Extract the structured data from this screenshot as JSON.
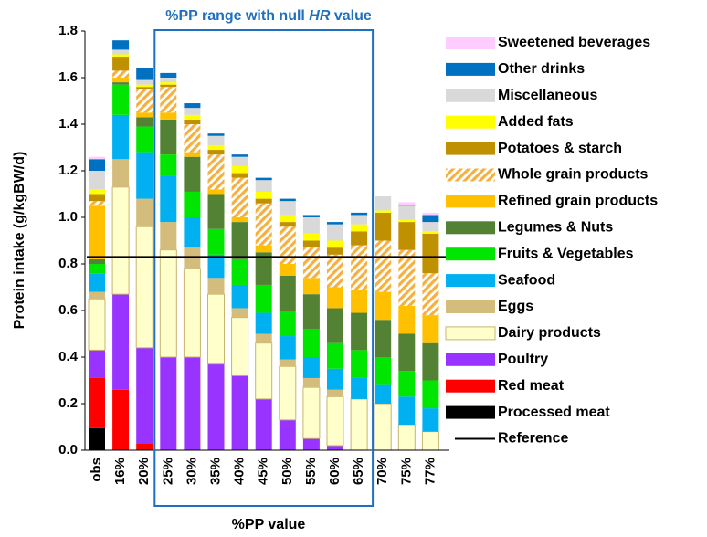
{
  "chart_data": {
    "type": "stacked_bar",
    "annotation_parts": [
      "%PP range with null ",
      "HR",
      " value"
    ],
    "annotation_color": "#1f6fbf",
    "xlabel": "%PP value",
    "ylabel": "Protein intake (g/kgBW/d)",
    "categories": [
      "obs",
      "16%",
      "20%",
      "25%",
      "30%",
      "35%",
      "40%",
      "45%",
      "50%",
      "55%",
      "60%",
      "65%",
      "70%",
      "75%",
      "77%"
    ],
    "highlight_range": [
      "25%",
      "65%"
    ],
    "ylim": [
      0,
      1.8
    ],
    "yticks": [
      {
        "value": 0,
        "label": "0.0"
      },
      0.2,
      0.4,
      0.6,
      0.8,
      {
        "value": 1,
        "label": "1.0"
      },
      1.2,
      1.4,
      1.6,
      1.8
    ],
    "series": [
      {
        "name": "Processed meat",
        "color": "#000000",
        "values": [
          0.095,
          0,
          0,
          0,
          0,
          0,
          0,
          0,
          0,
          0,
          0,
          0,
          0,
          0,
          0
        ]
      },
      {
        "name": "Red meat",
        "color": "#ff0000",
        "values": [
          0.215,
          0.26,
          0.03,
          0,
          0,
          0,
          0,
          0,
          0,
          0,
          0,
          0,
          0,
          0,
          0
        ]
      },
      {
        "name": "Poultry",
        "color": "#9933ff",
        "values": [
          0.12,
          0.41,
          0.41,
          0.4,
          0.4,
          0.37,
          0.32,
          0.22,
          0.13,
          0.05,
          0.02,
          0,
          0,
          0,
          0
        ]
      },
      {
        "name": "Dairy products",
        "color": "#ffffcc",
        "edgecolor": "#c8b46e",
        "values": [
          0.22,
          0.46,
          0.52,
          0.46,
          0.38,
          0.3,
          0.25,
          0.24,
          0.23,
          0.22,
          0.21,
          0.22,
          0.2,
          0.11,
          0.08
        ]
      },
      {
        "name": "Eggs",
        "color": "#d4bc7c",
        "values": [
          0.03,
          0.12,
          0.12,
          0.12,
          0.09,
          0.07,
          0.04,
          0.04,
          0.03,
          0.04,
          0.03,
          0,
          0,
          0,
          0
        ]
      },
      {
        "name": "Seafood",
        "color": "#00b0f0",
        "values": [
          0.08,
          0.19,
          0.2,
          0.2,
          0.13,
          0.1,
          0.1,
          0.09,
          0.1,
          0.09,
          0.09,
          0.09,
          0.08,
          0.12,
          0.1
        ]
      },
      {
        "name": "Fruits & Vegetables",
        "color": "#00e600",
        "values": [
          0.04,
          0.13,
          0.11,
          0.09,
          0.11,
          0.11,
          0.11,
          0.12,
          0.11,
          0.12,
          0.11,
          0.12,
          0.12,
          0.11,
          0.12
        ]
      },
      {
        "name": "Legumes & Nuts",
        "color": "#548235",
        "values": [
          0.02,
          0.01,
          0.04,
          0.15,
          0.15,
          0.15,
          0.16,
          0.14,
          0.15,
          0.15,
          0.15,
          0.16,
          0.16,
          0.16,
          0.16
        ]
      },
      {
        "name": "Refined grain products",
        "color": "#ffc000",
        "values": [
          0.23,
          0.02,
          0.02,
          0.03,
          0.02,
          0.02,
          0.02,
          0.03,
          0.05,
          0.07,
          0.09,
          0.1,
          0.12,
          0.12,
          0.12
        ]
      },
      {
        "name": "Whole grain products",
        "color": "#f5b041",
        "hatch": true,
        "values": [
          0.02,
          0.03,
          0.1,
          0.11,
          0.12,
          0.15,
          0.17,
          0.18,
          0.16,
          0.13,
          0.14,
          0.19,
          0.22,
          0.24,
          0.18
        ]
      },
      {
        "name": "Potatoes & starch",
        "color": "#bf9000",
        "values": [
          0.03,
          0.06,
          0.01,
          0.01,
          0.02,
          0.02,
          0.02,
          0.02,
          0.02,
          0.03,
          0.03,
          0.06,
          0.12,
          0.12,
          0.17
        ]
      },
      {
        "name": "Added fats",
        "color": "#ffff00",
        "values": [
          0.02,
          0.01,
          0.01,
          0.01,
          0.02,
          0.02,
          0.03,
          0.03,
          0.03,
          0.03,
          0.03,
          0.03,
          0.01,
          0.01,
          0.01
        ]
      },
      {
        "name": "Miscellaneous",
        "color": "#d9d9d9",
        "values": [
          0.08,
          0.02,
          0.02,
          0.02,
          0.03,
          0.04,
          0.04,
          0.05,
          0.06,
          0.07,
          0.07,
          0.04,
          0.06,
          0.06,
          0.04
        ]
      },
      {
        "name": "Other drinks",
        "color": "#0070c0",
        "values": [
          0.05,
          0.04,
          0.05,
          0.02,
          0.02,
          0.01,
          0.01,
          0.01,
          0.01,
          0.01,
          0.01,
          0.01,
          0,
          0.005,
          0.03
        ]
      },
      {
        "name": "Sweetened beverages",
        "color": "#ffccff",
        "values": [
          0.01,
          0,
          0,
          0,
          0,
          0,
          0,
          0,
          0,
          0,
          0,
          0,
          0,
          0.01,
          0.01
        ]
      }
    ],
    "reference": {
      "name": "Reference",
      "value": 0.83,
      "color": "#000000"
    },
    "legend": "right"
  }
}
